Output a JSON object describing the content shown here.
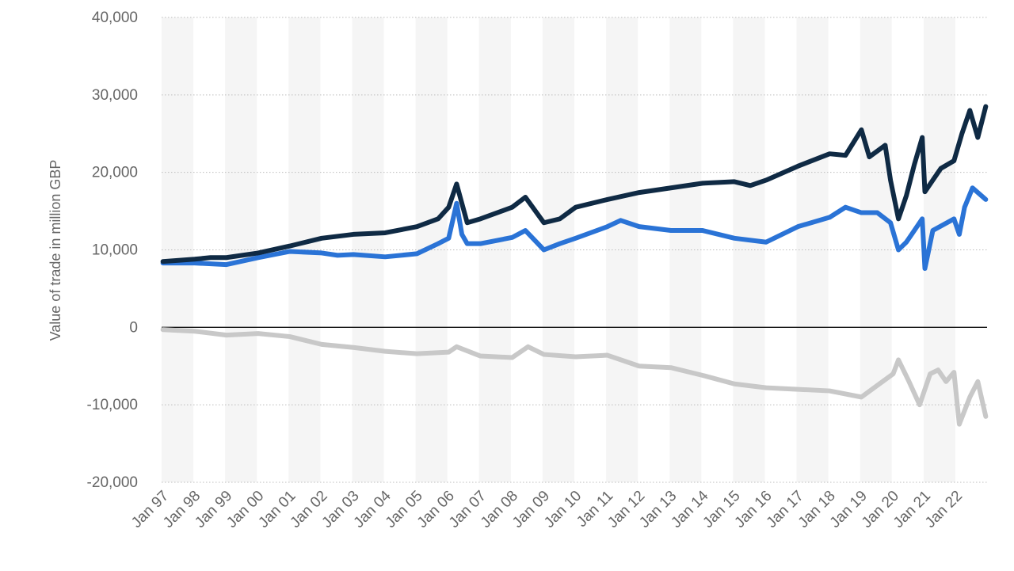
{
  "chart_data": {
    "type": "line",
    "title": "",
    "xlabel": "",
    "ylabel": "Value of trade in million GBP",
    "ylim": [
      -20000,
      40000
    ],
    "y_ticks": [
      40000,
      30000,
      20000,
      10000,
      0,
      -10000,
      -20000
    ],
    "y_tick_labels": [
      "40,000",
      "30,000",
      "20,000",
      "10,000",
      "0",
      "-10,000",
      "-20,000"
    ],
    "x_tick_labels": [
      "Jan 97",
      "Jan 98",
      "Jan 99",
      "Jan 00",
      "Jan 01",
      "Jan 02",
      "Jan 03",
      "Jan 04",
      "Jan 05",
      "Jan 06",
      "Jan 07",
      "Jan 08",
      "Jan 09",
      "Jan 10",
      "Jan 11",
      "Jan 12",
      "Jan 13",
      "Jan 14",
      "Jan 15",
      "Jan 16",
      "Jan 17",
      "Jan 18",
      "Jan 19",
      "Jan 20",
      "Jan 21",
      "Jan 22"
    ],
    "x_start": "Jan 97",
    "x_end": "Dec 22",
    "grid": true,
    "legend": "none",
    "series": [
      {
        "color": "#0f2a44",
        "values": [
          [
            "Jan 97",
            8500
          ],
          [
            "Jan 98",
            8800
          ],
          [
            "Jul 98",
            9000
          ],
          [
            "Jan 99",
            9000
          ],
          [
            "Jan 00",
            9600
          ],
          [
            "Jan 01",
            10500
          ],
          [
            "Jan 02",
            11500
          ],
          [
            "Jan 03",
            12000
          ],
          [
            "Jan 04",
            12200
          ],
          [
            "Jan 05",
            13000
          ],
          [
            "Sep 05",
            14000
          ],
          [
            "Jan 06",
            15500
          ],
          [
            "Apr 06",
            18500
          ],
          [
            "Jun 06",
            16000
          ],
          [
            "Aug 06",
            13500
          ],
          [
            "Jan 07",
            14000
          ],
          [
            "Jan 08",
            15500
          ],
          [
            "Jun 08",
            16800
          ],
          [
            "Jan 09",
            13500
          ],
          [
            "Jul 09",
            14000
          ],
          [
            "Jan 10",
            15500
          ],
          [
            "Jan 11",
            16500
          ],
          [
            "Jan 12",
            17400
          ],
          [
            "Jan 13",
            18000
          ],
          [
            "Jan 14",
            18600
          ],
          [
            "Jan 15",
            18800
          ],
          [
            "Jul 15",
            18300
          ],
          [
            "Jan 16",
            19000
          ],
          [
            "Jan 17",
            20800
          ],
          [
            "Jan 18",
            22400
          ],
          [
            "Jul 18",
            22200
          ],
          [
            "Jan 19",
            25500
          ],
          [
            "Apr 19",
            22000
          ],
          [
            "Oct 19",
            23500
          ],
          [
            "Dec 19",
            19000
          ],
          [
            "Mar 20",
            14000
          ],
          [
            "Jun 20",
            17000
          ],
          [
            "Sep 20",
            21000
          ],
          [
            "Dec 20",
            24500
          ],
          [
            "Jan 21",
            17500
          ],
          [
            "Apr 21",
            19000
          ],
          [
            "Jul 21",
            20500
          ],
          [
            "Dec 21",
            21500
          ],
          [
            "Mar 22",
            25000
          ],
          [
            "Jun 22",
            28000
          ],
          [
            "Sep 22",
            24500
          ],
          [
            "Dec 22",
            28500
          ]
        ]
      },
      {
        "color": "#2a73d6",
        "values": [
          [
            "Jan 97",
            8300
          ],
          [
            "Jan 98",
            8300
          ],
          [
            "Jan 99",
            8100
          ],
          [
            "Jan 00",
            9000
          ],
          [
            "Jan 01",
            9800
          ],
          [
            "Jan 02",
            9600
          ],
          [
            "Jul 02",
            9300
          ],
          [
            "Jan 03",
            9400
          ],
          [
            "Jan 04",
            9100
          ],
          [
            "Jan 05",
            9500
          ],
          [
            "Sep 05",
            10800
          ],
          [
            "Jan 06",
            11500
          ],
          [
            "Apr 06",
            16000
          ],
          [
            "Jun 06",
            12000
          ],
          [
            "Aug 06",
            10800
          ],
          [
            "Jan 07",
            10800
          ],
          [
            "Jan 08",
            11600
          ],
          [
            "Jun 08",
            12500
          ],
          [
            "Jan 09",
            10000
          ],
          [
            "Jul 09",
            10800
          ],
          [
            "Jan 10",
            11500
          ],
          [
            "Jan 11",
            13000
          ],
          [
            "Jun 11",
            13800
          ],
          [
            "Jan 12",
            13000
          ],
          [
            "Jan 13",
            12500
          ],
          [
            "Jan 14",
            12500
          ],
          [
            "Jan 15",
            11500
          ],
          [
            "Jan 16",
            11000
          ],
          [
            "Jan 17",
            13000
          ],
          [
            "Jan 18",
            14200
          ],
          [
            "Jul 18",
            15500
          ],
          [
            "Jan 19",
            14800
          ],
          [
            "Jul 19",
            14800
          ],
          [
            "Dec 19",
            13500
          ],
          [
            "Mar 20",
            10000
          ],
          [
            "Jun 20",
            11000
          ],
          [
            "Sep 20",
            12500
          ],
          [
            "Dec 20",
            14000
          ],
          [
            "Jan 21",
            7600
          ],
          [
            "Apr 21",
            12500
          ],
          [
            "Dec 21",
            14000
          ],
          [
            "Feb 22",
            12000
          ],
          [
            "Apr 22",
            15500
          ],
          [
            "Jul 22",
            18000
          ],
          [
            "Dec 22",
            16500
          ]
        ]
      },
      {
        "color": "#c8c8c8",
        "values": [
          [
            "Jan 97",
            -300
          ],
          [
            "Jan 98",
            -500
          ],
          [
            "Jan 99",
            -1000
          ],
          [
            "Jan 00",
            -800
          ],
          [
            "Jan 01",
            -1200
          ],
          [
            "Jan 02",
            -2200
          ],
          [
            "Jan 03",
            -2600
          ],
          [
            "Jan 04",
            -3100
          ],
          [
            "Jan 05",
            -3400
          ],
          [
            "Jan 06",
            -3200
          ],
          [
            "Apr 06",
            -2500
          ],
          [
            "Jan 07",
            -3700
          ],
          [
            "Jan 08",
            -3900
          ],
          [
            "Jul 08",
            -2500
          ],
          [
            "Jan 09",
            -3500
          ],
          [
            "Jan 10",
            -3800
          ],
          [
            "Jan 11",
            -3600
          ],
          [
            "Jan 12",
            -5000
          ],
          [
            "Jan 13",
            -5200
          ],
          [
            "Jan 14",
            -6200
          ],
          [
            "Jan 15",
            -7300
          ],
          [
            "Jan 16",
            -7800
          ],
          [
            "Jan 17",
            -8000
          ],
          [
            "Jan 18",
            -8200
          ],
          [
            "Jan 19",
            -9000
          ],
          [
            "Jul 19",
            -7500
          ],
          [
            "Jan 20",
            -6000
          ],
          [
            "Mar 20",
            -4200
          ],
          [
            "Jul 20",
            -7000
          ],
          [
            "Nov 20",
            -10000
          ],
          [
            "Mar 21",
            -6000
          ],
          [
            "Jun 21",
            -5500
          ],
          [
            "Sep 21",
            -7000
          ],
          [
            "Dec 21",
            -5800
          ],
          [
            "Feb 22",
            -12500
          ],
          [
            "Jun 22",
            -9000
          ],
          [
            "Sep 22",
            -7000
          ],
          [
            "Dec 22",
            -11500
          ]
        ]
      }
    ]
  }
}
